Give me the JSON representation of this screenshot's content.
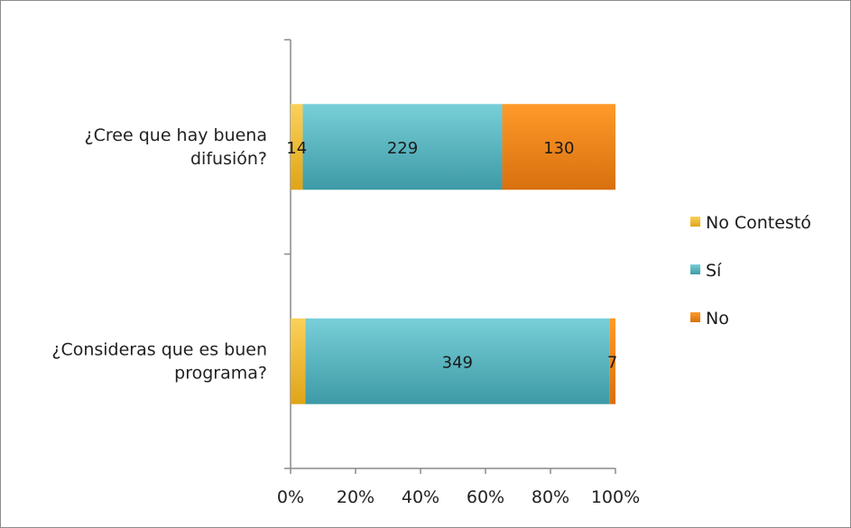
{
  "chart_data": {
    "type": "bar",
    "orientation": "horizontal",
    "stacked": "percent",
    "categories": [
      "¿Cree que hay buena difusión?",
      "¿Consideras que es buen programa?"
    ],
    "category_lines": [
      [
        "¿Cree que hay buena",
        "difusión?"
      ],
      [
        "¿Consideras que es buen",
        "programa?"
      ]
    ],
    "series": [
      {
        "name": "No Contestó",
        "values": [
          14,
          17
        ],
        "labels": [
          "14",
          ""
        ],
        "color": "#f5b731"
      },
      {
        "name": "Sí",
        "values": [
          229,
          349
        ],
        "labels": [
          "229",
          "349"
        ],
        "color": "#4fb3bf"
      },
      {
        "name": "No",
        "values": [
          130,
          7
        ],
        "labels": [
          "130",
          "7"
        ],
        "color": "#f08a1c"
      }
    ],
    "xaxis": {
      "ticks": [
        "0%",
        "20%",
        "40%",
        "60%",
        "80%",
        "100%"
      ],
      "range": [
        0,
        100
      ]
    },
    "legend": {
      "position": "right"
    },
    "grid": false
  }
}
